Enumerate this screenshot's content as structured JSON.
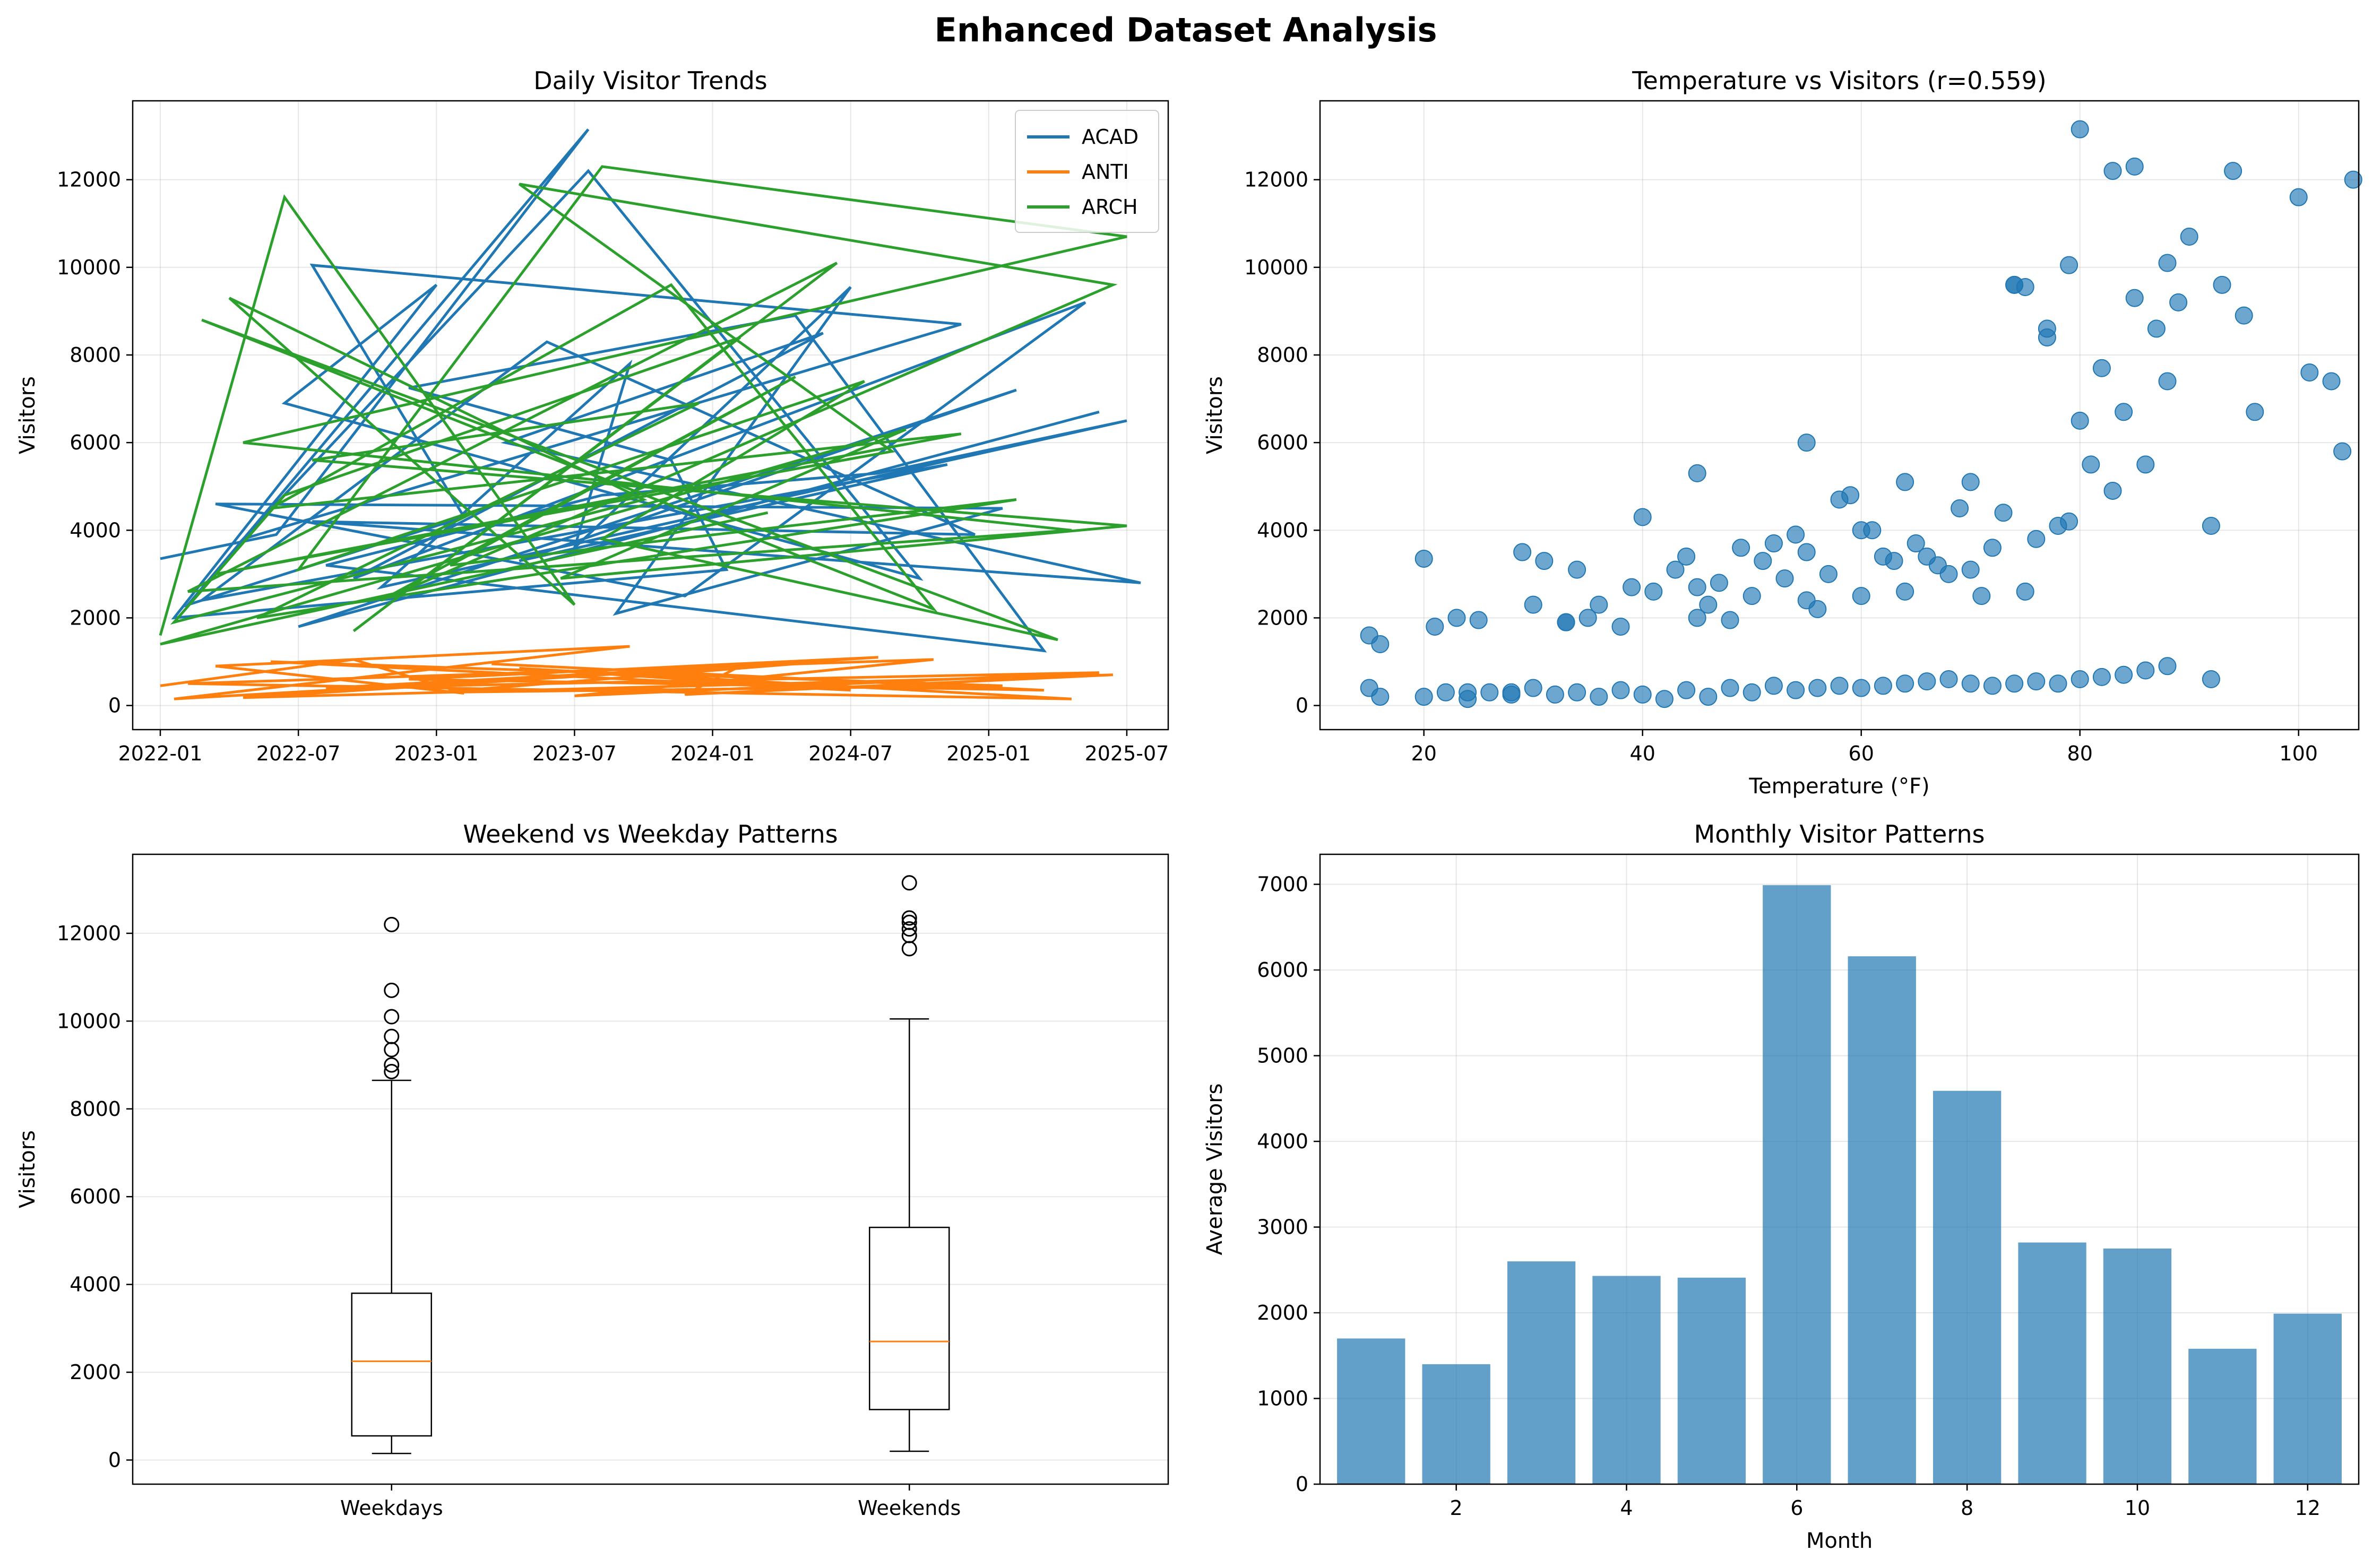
{
  "figure": {
    "title": "Enhanced Dataset Analysis"
  },
  "colors": {
    "acad": "#1f77b4",
    "anti": "#ff7f0e",
    "arch": "#2ca02c",
    "grid": "#b0b0b0",
    "bar": "#1f77b4",
    "median": "#ff7f0e"
  },
  "chart_data": [
    {
      "id": "trends",
      "type": "line",
      "title": "Daily Visitor Trends",
      "xlabel": "",
      "ylabel": "Visitors",
      "x_ticks": [
        "2022-01",
        "2022-07",
        "2023-01",
        "2023-07",
        "2024-01",
        "2024-07",
        "2025-01",
        "2025-07"
      ],
      "x_tick_values": [
        2022.0,
        2022.5,
        2023.0,
        2023.5,
        2024.0,
        2024.5,
        2025.0,
        2025.5
      ],
      "xlim": [
        2021.9,
        2025.65
      ],
      "ylim": [
        -550,
        13800
      ],
      "y_ticks": [
        0,
        2000,
        4000,
        6000,
        8000,
        10000,
        12000
      ],
      "legend": {
        "position": "top-right",
        "entries": [
          "ACAD",
          "ANTI",
          "ARCH"
        ]
      },
      "series": [
        {
          "name": "ACAD",
          "color": "#1f77b4",
          "x": [
            2022.0,
            2022.42,
            2023.55,
            2022.1,
            2023.1,
            2022.55,
            2024.9,
            2022.3,
            2023.55,
            2024.75,
            2022.45,
            2023.0,
            2022.05,
            2024.05,
            2023.85,
            2022.9,
            2024.3,
            2025.2,
            2022.6,
            2023.6,
            2024.6,
            2025.5,
            2022.8,
            2023.7,
            2023.5,
            2024.5,
            2023.65,
            2025.05,
            2022.2,
            2023.9,
            2025.35,
            2022.7,
            2024.4,
            2023.25,
            2025.55,
            2022.55,
            2024.95,
            2023.4,
            2022.15,
            2024.85,
            2023.3,
            2025.1,
            2022.5,
            2025.4
          ],
          "y": [
            3350,
            3900,
            13150,
            2300,
            4300,
            10050,
            8700,
            3800,
            12200,
            2900,
            6900,
            9600,
            2000,
            3100,
            5600,
            7250,
            8900,
            1250,
            3200,
            4800,
            5300,
            6500,
            2700,
            7800,
            3600,
            9550,
            2100,
            4500,
            4600,
            2500,
            9200,
            2900,
            8500,
            6000,
            2800,
            4200,
            3900,
            8300,
            2400,
            5500,
            3300,
            7200,
            1800,
            6700
          ]
        },
        {
          "name": "ANTI",
          "color": "#ff7f0e",
          "x": [
            2022.0,
            2022.7,
            2023.1,
            2022.2,
            2023.7,
            2022.05,
            2024.3,
            2023.0,
            2025.05,
            2022.4,
            2024.5,
            2023.3,
            2025.3,
            2022.1,
            2024.8,
            2023.5,
            2025.4,
            2022.6,
            2024.1,
            2023.9,
            2025.45,
            2022.3,
            2024.6,
            2022.9,
            2025.2,
            2023.2,
            2024.95
          ],
          "y": [
            450,
            1050,
            280,
            900,
            1350,
            150,
            950,
            300,
            450,
            1000,
            350,
            850,
            150,
            500,
            1050,
            220,
            750,
            400,
            900,
            250,
            700,
            180,
            1100,
            600,
            350,
            950,
            420
          ]
        },
        {
          "name": "ARCH",
          "color": "#2ca02c",
          "x": [
            2022.0,
            2022.45,
            2023.5,
            2022.25,
            2023.75,
            2022.05,
            2022.45,
            2024.1,
            2022.7,
            2024.45,
            2022.1,
            2025.3,
            2022.3,
            2025.5,
            2023.6,
            2022.5,
            2024.55,
            2023.6,
            2025.25,
            2022.15,
            2024.8,
            2023.85,
            2022.4,
            2024.9,
            2022.2,
            2024.65,
            2023.3,
            2025.45,
            2022.8,
            2024.3,
            2023.05,
            2025.1,
            2022.35,
            2023.95,
            2022.55,
            2025.5,
            2023.45,
            2024.7,
            2022.0,
            2024.2
          ],
          "y": [
            1600,
            11600,
            2300,
            9300,
            4700,
            1900,
            4800,
            8400,
            1700,
            10100,
            2600,
            4000,
            6000,
            10700,
            12300,
            3100,
            7400,
            3800,
            1500,
            8800,
            2200,
            9600,
            4500,
            6200,
            3000,
            5800,
            11900,
            9600,
            2400,
            7500,
            3200,
            4700,
            2000,
            6900,
            5600,
            4100,
            2900,
            6300,
            1400,
            4400
          ]
        }
      ]
    },
    {
      "id": "scatter",
      "type": "scatter",
      "title": "Temperature vs Visitors (r=0.559)",
      "xlabel": "Temperature (°F)",
      "ylabel": "Visitors",
      "xlim": [
        10.5,
        105.5
      ],
      "ylim": [
        -550,
        13800
      ],
      "x_ticks": [
        20,
        40,
        60,
        80,
        100
      ],
      "y_ticks": [
        0,
        2000,
        4000,
        6000,
        8000,
        10000,
        12000
      ],
      "points_x": [
        15,
        16,
        20,
        21,
        23,
        24,
        25,
        28,
        29,
        30,
        31,
        33,
        34,
        35,
        36,
        38,
        39,
        40,
        41,
        43,
        44,
        45,
        46,
        47,
        48,
        49,
        50,
        51,
        52,
        53,
        54,
        55,
        56,
        57,
        58,
        59,
        60,
        61,
        62,
        63,
        64,
        65,
        66,
        67,
        68,
        69,
        70,
        71,
        72,
        73,
        74,
        75,
        76,
        77,
        78,
        79,
        80,
        81,
        82,
        83,
        84,
        85,
        86,
        87,
        88,
        89,
        90,
        92,
        93,
        94,
        95,
        96,
        100,
        101,
        103,
        104,
        105,
        15,
        16,
        20,
        22,
        24,
        26,
        28,
        30,
        32,
        34,
        36,
        38,
        40,
        42,
        44,
        46,
        48,
        50,
        52,
        54,
        56,
        58,
        60,
        62,
        64,
        66,
        68,
        70,
        72,
        74,
        76,
        78,
        80,
        82,
        84,
        86,
        88,
        92,
        33,
        45,
        55,
        74,
        75,
        77,
        79,
        80,
        83,
        85,
        88,
        45,
        55,
        64,
        60,
        70
      ],
      "points_y": [
        1600,
        1400,
        3350,
        1800,
        2000,
        300,
        1950,
        300,
        3500,
        2300,
        3300,
        1900,
        3100,
        2000,
        2300,
        1800,
        2700,
        4300,
        2600,
        3100,
        3400,
        2700,
        2300,
        2800,
        1950,
        3600,
        2500,
        3300,
        3700,
        2900,
        3900,
        3500,
        2200,
        3000,
        4700,
        4800,
        2500,
        4000,
        3400,
        3300,
        5100,
        3700,
        3400,
        3200,
        3000,
        4500,
        3100,
        2500,
        3600,
        4400,
        9600,
        2600,
        3800,
        8600,
        4100,
        4200,
        13150,
        5500,
        7700,
        4900,
        6700,
        12300,
        5500,
        8600,
        7400,
        9200,
        10700,
        4100,
        9600,
        12200,
        8900,
        6700,
        11600,
        7600,
        7400,
        5800,
        12000,
        400,
        200,
        200,
        300,
        150,
        300,
        250,
        400,
        250,
        300,
        200,
        350,
        250,
        150,
        350,
        200,
        400,
        300,
        450,
        350,
        400,
        450,
        400,
        450,
        500,
        550,
        600,
        500,
        450,
        500,
        550,
        500,
        600,
        650,
        700,
        800,
        900,
        600,
        1900,
        5300,
        6000,
        9600,
        9550,
        8400,
        10050,
        6500,
        12200,
        9300,
        10100,
        2000,
        2400,
        2600,
        4000,
        5100
      ]
    },
    {
      "id": "boxplot",
      "type": "box",
      "title": "Weekend vs Weekday Patterns",
      "xlabel": "",
      "ylabel": "Visitors",
      "ylim": [
        -550,
        13800
      ],
      "y_ticks": [
        0,
        2000,
        4000,
        6000,
        8000,
        10000,
        12000
      ],
      "categories": [
        "Weekdays",
        "Weekends"
      ],
      "boxes": [
        {
          "label": "Weekdays",
          "whisker_low": 150,
          "q1": 550,
          "median": 2250,
          "q3": 3800,
          "whisker_high": 8650,
          "outliers": [
            8850,
            9000,
            9350,
            9650,
            10100,
            10700,
            12200
          ]
        },
        {
          "label": "Weekends",
          "whisker_low": 200,
          "q1": 1150,
          "median": 2700,
          "q3": 5300,
          "whisker_high": 10050,
          "outliers": [
            11650,
            11950,
            12100,
            12250,
            12350,
            13150
          ]
        }
      ]
    },
    {
      "id": "monthly",
      "type": "bar",
      "title": "Monthly Visitor Patterns",
      "xlabel": "Month",
      "ylabel": "Average Visitors",
      "categories": [
        1,
        2,
        3,
        4,
        5,
        6,
        7,
        8,
        9,
        10,
        11,
        12
      ],
      "values": [
        1700,
        1400,
        2600,
        2430,
        2410,
        6990,
        6160,
        4590,
        2820,
        2750,
        1580,
        1990
      ],
      "xlim": [
        0.4,
        12.6
      ],
      "ylim": [
        0,
        7350
      ],
      "x_ticks": [
        2,
        4,
        6,
        8,
        10,
        12
      ],
      "y_ticks": [
        0,
        1000,
        2000,
        3000,
        4000,
        5000,
        6000,
        7000
      ]
    }
  ]
}
